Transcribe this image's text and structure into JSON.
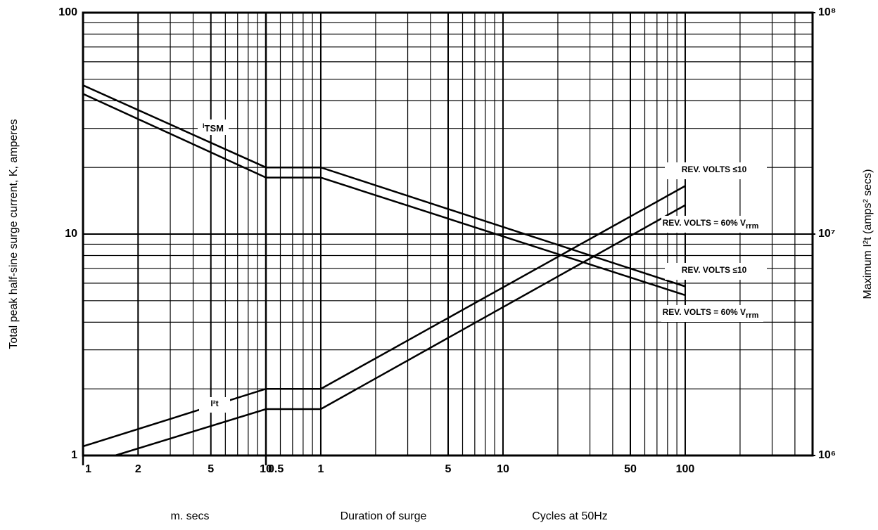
{
  "chart_data": {
    "type": "line",
    "log_scale": true,
    "grid": true,
    "color": "#000000",
    "ylabel": "Total peak half-sine surge current, K, amperes",
    "y2label": "Maximum I²t (amps² secs)",
    "xlabel": "Duration of surge",
    "ylim": [
      1,
      100
    ],
    "yticks": [
      1,
      10,
      100
    ],
    "y2lim": [
      1000000,
      100000000
    ],
    "y2ticks": [
      {
        "value": 1000000,
        "label": "10⁶"
      },
      {
        "value": 10000000,
        "label": "10⁷"
      },
      {
        "value": 100000000,
        "label": "10⁸"
      }
    ],
    "x_segments": [
      {
        "label": "m. secs",
        "xlim": [
          1,
          10
        ],
        "xticks": [
          1,
          2,
          5,
          10
        ]
      },
      {
        "label": "Cycles at 50Hz",
        "xlim": [
          0.5,
          500
        ],
        "xticks": [
          0.5,
          1,
          5,
          10,
          50,
          100
        ]
      }
    ],
    "series": [
      {
        "name": "REV. VOLTS ≤10",
        "group": "ITSM",
        "x_ms": [
          1,
          10
        ],
        "values_ms": [
          47,
          20
        ],
        "x_cycles": [
          0.5,
          1,
          100
        ],
        "values_cycles": [
          20,
          20,
          5.8
        ]
      },
      {
        "name": "REV. VOLTS = 60% V",
        "name_sub": "rrm",
        "group": "ITSM",
        "x_ms": [
          1,
          10
        ],
        "values_ms": [
          43,
          18
        ],
        "x_cycles": [
          0.5,
          1,
          100
        ],
        "values_cycles": [
          18,
          18,
          5.3
        ]
      },
      {
        "name": "REV. VOLTS ≤10",
        "group": "I2t",
        "axis": "y2",
        "x_ms": [
          1,
          10
        ],
        "values_ms": [
          1100000,
          2000000
        ],
        "x_cycles": [
          0.5,
          1,
          100
        ],
        "values_cycles": [
          2000000,
          2000000,
          16500000
        ]
      },
      {
        "name": "REV. VOLTS = 60% V",
        "name_sub": "rrm",
        "group": "I2t",
        "axis": "y2",
        "x_ms": [
          1.5,
          10
        ],
        "values_ms": [
          1000000,
          1620000
        ],
        "x_cycles": [
          0.5,
          1,
          100
        ],
        "values_cycles": [
          1620000,
          1620000,
          13500000
        ]
      }
    ],
    "annotations": [
      {
        "text": "I",
        "sub": "TSM"
      },
      {
        "text": "I²t"
      }
    ]
  }
}
